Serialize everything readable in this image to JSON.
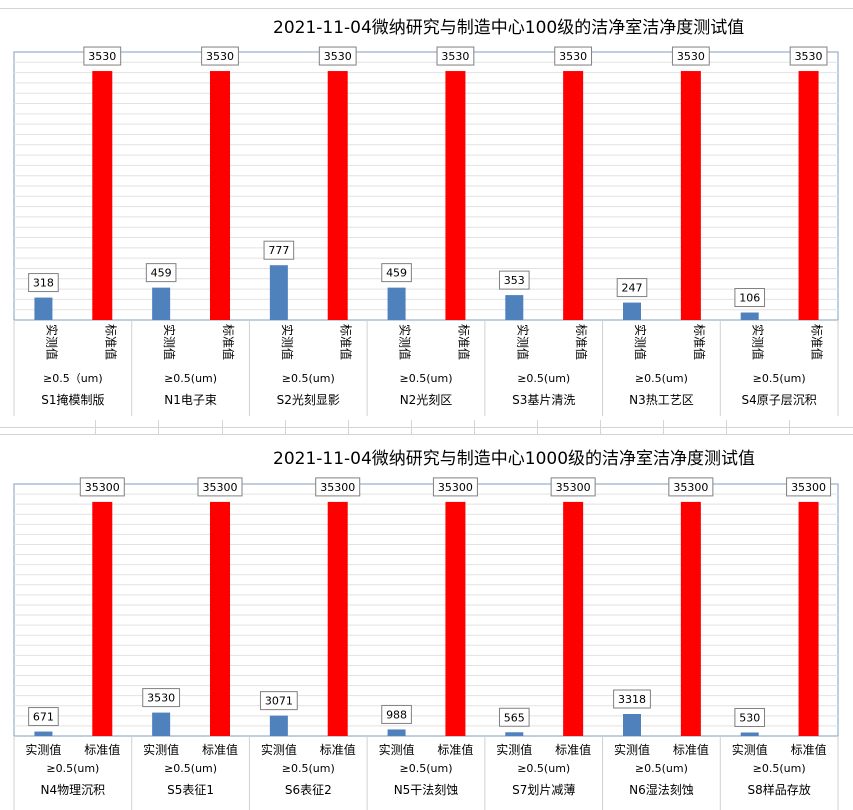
{
  "chart_data": [
    {
      "type": "bar",
      "title": "2021-11-04微纳研究与制造中心100级的洁净室洁净度测试值",
      "series_labels": [
        "实测值",
        "标准值"
      ],
      "label_orientation": "vertical",
      "groups": [
        {
          "size": "≥0.5（um)",
          "name": "S1掩模制版",
          "measured": 318,
          "standard": 3530
        },
        {
          "size": "≥0.5(um)",
          "name": "N1电子束",
          "measured": 459,
          "standard": 3530
        },
        {
          "size": "≥0.5(um)",
          "name": "S2光刻显影",
          "measured": 777,
          "standard": 3530
        },
        {
          "size": "≥0.5(um)",
          "name": "N2光刻区",
          "measured": 459,
          "standard": 3530
        },
        {
          "size": "≥0.5(um)",
          "name": "S3基片清洗",
          "measured": 353,
          "standard": 3530
        },
        {
          "size": "≥0.5(um)",
          "name": "N3热工艺区",
          "measured": 247,
          "standard": 3530
        },
        {
          "size": "≥0.5(um)",
          "name": "S4原子层沉积",
          "measured": 106,
          "standard": 3530
        }
      ],
      "ylim": [
        0,
        3800
      ],
      "colors": {
        "measured": "#4f81bd",
        "standard": "#ff0000"
      },
      "grid": true
    },
    {
      "type": "bar",
      "title": "2021-11-04微纳研究与制造中心1000级的洁净室洁净度测试值",
      "series_labels": [
        "实测值",
        "标准值"
      ],
      "label_orientation": "horizontal",
      "groups": [
        {
          "size": "≥0.5(um)",
          "name": "N4物理沉积",
          "measured": 671,
          "standard": 35300
        },
        {
          "size": "≥0.5(um)",
          "name": "S5表征1",
          "measured": 3530,
          "standard": 35300
        },
        {
          "size": "≥0.5(um)",
          "name": "S6表征2",
          "measured": 3071,
          "standard": 35300
        },
        {
          "size": "≥0.5(um)",
          "name": "N5干法刻蚀",
          "measured": 988,
          "standard": 35300
        },
        {
          "size": "≥0.5(um)",
          "name": "S7划片减薄",
          "measured": 565,
          "standard": 35300
        },
        {
          "size": "≥0.5(um)",
          "name": "N6湿法刻蚀",
          "measured": 3318,
          "standard": 35300
        },
        {
          "size": "≥0.5(um)",
          "name": "S8样品存放",
          "measured": 530,
          "standard": 35300
        }
      ],
      "ylim": [
        0,
        38000
      ],
      "colors": {
        "measured": "#4f81bd",
        "standard": "#ff0000"
      },
      "grid": true
    }
  ]
}
